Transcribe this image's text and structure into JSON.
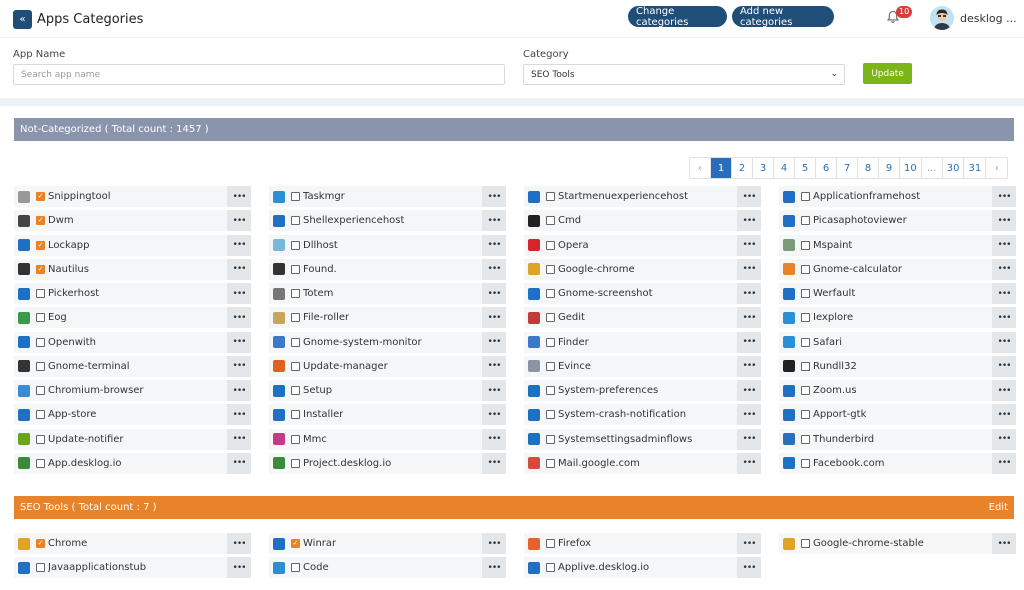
{
  "header": {
    "back_icon": "double-chevron-left-icon",
    "title": "Apps Categories",
    "change_categories_label": "Change categories",
    "add_category_label": "Add new categories",
    "notification_count": "10",
    "user_name": "desklog ...",
    "brand_color": "#1f4e79"
  },
  "filters": {
    "app_name_label": "App Name",
    "app_name_placeholder": "Search app name",
    "category_label": "Category",
    "category_value": "SEO Tools",
    "update_label": "Update"
  },
  "not_categorized": {
    "title": "Not-Categorized ( Total count : 1457 )",
    "pages": [
      "‹",
      "1",
      "2",
      "3",
      "4",
      "5",
      "6",
      "7",
      "8",
      "9",
      "10",
      "...",
      "30",
      "31",
      "›"
    ],
    "active_page": "1",
    "apps": [
      {
        "name": "Snippingtool",
        "checked": true,
        "icon": "#999999"
      },
      {
        "name": "Taskmgr",
        "checked": false,
        "icon": "#2a8fd4"
      },
      {
        "name": "Startmenuexperiencehost",
        "checked": false,
        "icon": "#1f6fc4"
      },
      {
        "name": "Applicationframehost",
        "checked": false,
        "icon": "#1f6fc4"
      },
      {
        "name": "Dwm",
        "checked": true,
        "icon": "#444444"
      },
      {
        "name": "Shellexperiencehost",
        "checked": false,
        "icon": "#1f6fc4"
      },
      {
        "name": "Cmd",
        "checked": false,
        "icon": "#222222"
      },
      {
        "name": "Picasaphotoviewer",
        "checked": false,
        "icon": "#1f6fc4"
      },
      {
        "name": "Lockapp",
        "checked": true,
        "icon": "#1f6fc4"
      },
      {
        "name": "Dllhost",
        "checked": false,
        "icon": "#7ab8d9"
      },
      {
        "name": "Opera",
        "checked": false,
        "icon": "#d6242b"
      },
      {
        "name": "Mspaint",
        "checked": false,
        "icon": "#7a9a7a"
      },
      {
        "name": "Nautilus",
        "checked": true,
        "icon": "#333333"
      },
      {
        "name": "Found.",
        "checked": false,
        "icon": "#333333"
      },
      {
        "name": "Google-chrome",
        "checked": false,
        "icon": "#e0a323"
      },
      {
        "name": "Gnome-calculator",
        "checked": false,
        "icon": "#e8832a"
      },
      {
        "name": "Pickerhost",
        "checked": false,
        "icon": "#1f6fc4"
      },
      {
        "name": "Totem",
        "checked": false,
        "icon": "#777777"
      },
      {
        "name": "Gnome-screenshot",
        "checked": false,
        "icon": "#1f6fc4"
      },
      {
        "name": "Werfault",
        "checked": false,
        "icon": "#1f6fc4"
      },
      {
        "name": "Eog",
        "checked": false,
        "icon": "#3a9a4a"
      },
      {
        "name": "File-roller",
        "checked": false,
        "icon": "#c9a55a"
      },
      {
        "name": "Gedit",
        "checked": false,
        "icon": "#c43a3a"
      },
      {
        "name": "Iexplore",
        "checked": false,
        "icon": "#2a8fd4"
      },
      {
        "name": "Openwith",
        "checked": false,
        "icon": "#1f6fc4"
      },
      {
        "name": "Gnome-system-monitor",
        "checked": false,
        "icon": "#3a7ac4"
      },
      {
        "name": "Finder",
        "checked": false,
        "icon": "#3a7ac4"
      },
      {
        "name": "Safari",
        "checked": false,
        "icon": "#2a8fd4"
      },
      {
        "name": "Gnome-terminal",
        "checked": false,
        "icon": "#333333"
      },
      {
        "name": "Update-manager",
        "checked": false,
        "icon": "#e0601f"
      },
      {
        "name": "Evince",
        "checked": false,
        "icon": "#8a94a4"
      },
      {
        "name": "Rundll32",
        "checked": false,
        "icon": "#222222"
      },
      {
        "name": "Chromium-browser",
        "checked": false,
        "icon": "#3a8ad4"
      },
      {
        "name": "Setup",
        "checked": false,
        "icon": "#1f6fc4"
      },
      {
        "name": "System-preferences",
        "checked": false,
        "icon": "#1f6fc4"
      },
      {
        "name": "Zoom.us",
        "checked": false,
        "icon": "#1f6fc4"
      },
      {
        "name": "App-store",
        "checked": false,
        "icon": "#1f6fc4"
      },
      {
        "name": "Installer",
        "checked": false,
        "icon": "#1f6fc4"
      },
      {
        "name": "System-crash-notification",
        "checked": false,
        "icon": "#1f6fc4"
      },
      {
        "name": "Apport-gtk",
        "checked": false,
        "icon": "#1f6fc4"
      },
      {
        "name": "Update-notifier",
        "checked": false,
        "icon": "#6aa51a"
      },
      {
        "name": "Mmc",
        "checked": false,
        "icon": "#c43a8a"
      },
      {
        "name": "Systemsettingsadminflows",
        "checked": false,
        "icon": "#1f6fc4"
      },
      {
        "name": "Thunderbird",
        "checked": false,
        "icon": "#2a6ebb"
      },
      {
        "name": "App.desklog.io",
        "checked": false,
        "icon": "#3a8a3a"
      },
      {
        "name": "Project.desklog.io",
        "checked": false,
        "icon": "#3a8a3a"
      },
      {
        "name": "Mail.google.com",
        "checked": false,
        "icon": "#d64a3a"
      },
      {
        "name": "Facebook.com",
        "checked": false,
        "icon": "#1f6fc4"
      }
    ]
  },
  "seo_tools": {
    "title": "SEO Tools ( Total count : 7 )",
    "edit_label": "Edit",
    "apps": [
      {
        "name": "Chrome",
        "checked": true,
        "icon": "#e0a323"
      },
      {
        "name": "Winrar",
        "checked": true,
        "icon": "#1f6fc4"
      },
      {
        "name": "Firefox",
        "checked": false,
        "icon": "#e8602a"
      },
      {
        "name": "Google-chrome-stable",
        "checked": false,
        "icon": "#e0a323"
      },
      {
        "name": "Javaapplicationstub",
        "checked": false,
        "icon": "#1f6fc4"
      },
      {
        "name": "Code",
        "checked": false,
        "icon": "#2a8fd4"
      },
      {
        "name": "Applive.desklog.io",
        "checked": false,
        "icon": "#1f6fc4"
      }
    ]
  },
  "dots_label": "•••"
}
